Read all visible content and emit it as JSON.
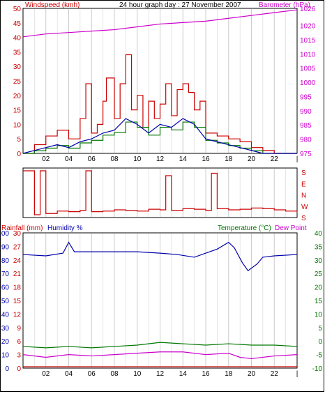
{
  "colors": {
    "wind": "#cc0000",
    "gust_green": "#007700",
    "wind_blue": "#0000aa",
    "barometer": "#cc00cc",
    "rain": "#cc0000",
    "humidity": "#0000aa",
    "temperature": "#007700",
    "dewpoint": "#cc00cc",
    "grid": "#cccccc"
  },
  "chart_data": [
    {
      "type": "line",
      "title": "24 hour graph day : 27 November 2007",
      "ylabel": "Windspeed (kmh)",
      "y2label": "Barometer (hPa)",
      "ylim": [
        0,
        50
      ],
      "y2lim": [
        975,
        1026
      ],
      "yticks": [
        0,
        5,
        10,
        15,
        20,
        25,
        30,
        35,
        40,
        45,
        50
      ],
      "y2ticks": [
        975,
        980,
        985,
        990,
        995,
        1000,
        1005,
        1010,
        1015,
        1020,
        1026
      ],
      "xticks": [
        "02",
        "04",
        "06",
        "08",
        "10",
        "12",
        "14",
        "16",
        "18",
        "20",
        "22",
        "|"
      ],
      "series": [
        {
          "name": "Barometer",
          "axis": "right",
          "x": [
            0,
            2,
            4,
            6,
            8,
            10,
            12,
            14,
            16,
            18,
            20,
            22,
            24
          ],
          "values": [
            1016,
            1017,
            1017.5,
            1018,
            1018.5,
            1019.5,
            1020.5,
            1021,
            1021.5,
            1022.5,
            1023.5,
            1024.5,
            1025.5
          ]
        },
        {
          "name": "Windspeed",
          "axis": "left",
          "x": [
            0,
            1,
            2,
            3,
            4,
            5,
            5.5,
            6,
            6.5,
            7,
            7.3,
            8,
            8.5,
            9,
            9.5,
            10,
            10.5,
            11,
            11.5,
            12,
            12.5,
            13,
            13.5,
            14,
            14.5,
            15,
            15.5,
            16,
            17,
            18,
            19,
            20,
            21,
            22,
            23,
            24
          ],
          "values": [
            0,
            3,
            6,
            8,
            5,
            12,
            24,
            7,
            10,
            18,
            26,
            12,
            24,
            34,
            15,
            20,
            9,
            18,
            12,
            17,
            24,
            13,
            22,
            24,
            21,
            15,
            18,
            7,
            6,
            5,
            4,
            2,
            1,
            0,
            0,
            0
          ]
        },
        {
          "name": "Wind average",
          "axis": "left",
          "x": [
            0,
            1,
            2,
            3,
            4,
            5,
            6,
            7,
            8,
            9,
            10,
            11,
            12,
            13,
            14,
            15,
            16,
            17,
            18,
            19,
            20,
            21,
            22,
            23,
            24
          ],
          "values": [
            0,
            1,
            2,
            3,
            2,
            4,
            5,
            7,
            8,
            12,
            10,
            7,
            10,
            9,
            12,
            10,
            5,
            4,
            3,
            2,
            1,
            0,
            0,
            0,
            0
          ]
        }
      ]
    },
    {
      "type": "line",
      "title": "",
      "ylabel": "",
      "yticks": [
        "S",
        "E",
        "N",
        "W",
        "S"
      ],
      "xticks": [],
      "series": [
        {
          "name": "Wind direction",
          "x": [
            0,
            0.5,
            1,
            1.5,
            2,
            3,
            4,
            5,
            5.5,
            6,
            7,
            8,
            9,
            10,
            11,
            12,
            12.5,
            13,
            14,
            15,
            16,
            16.5,
            17,
            18,
            19,
            20,
            21,
            22,
            23,
            24
          ],
          "values": [
            360,
            360,
            0,
            360,
            10,
            30,
            25,
            35,
            360,
            25,
            30,
            40,
            35,
            30,
            45,
            40,
            320,
            35,
            50,
            45,
            35,
            340,
            50,
            40,
            45,
            55,
            50,
            40,
            30,
            20
          ]
        }
      ]
    },
    {
      "type": "line",
      "title": "",
      "ylabel": "Rainfall (mm)",
      "y2label": "Humidity %",
      "y3label": "Temperature (°C)",
      "y4label": "Dew Point",
      "rain_ticks": [
        0,
        3,
        6,
        9,
        12,
        15,
        18,
        21,
        24,
        27,
        30
      ],
      "humidity_ticks": [
        0,
        10,
        20,
        30,
        40,
        50,
        60,
        70,
        80,
        90,
        100
      ],
      "temp_ticks": [
        -10,
        -5,
        0,
        5,
        10,
        15,
        20,
        25,
        30,
        35,
        40
      ],
      "xticks": [
        "02",
        "04",
        "06",
        "08",
        "10",
        "12",
        "14",
        "16",
        "18",
        "20",
        "22",
        "|"
      ],
      "series": [
        {
          "name": "Humidity %",
          "x": [
            0,
            2,
            3.5,
            4,
            4.5,
            6,
            8,
            10,
            12,
            13.5,
            15,
            17,
            18,
            18.5,
            19.2,
            19.7,
            20.5,
            21,
            22,
            24
          ],
          "values": [
            84,
            83,
            85,
            93,
            86,
            86,
            86,
            86,
            85,
            84,
            82,
            88,
            93,
            89,
            78,
            72,
            77,
            82,
            83,
            84
          ]
        },
        {
          "name": "Temperature (°C)",
          "x": [
            0,
            2,
            4,
            6,
            8,
            10,
            12,
            14,
            16,
            18,
            20,
            22,
            24
          ],
          "values": [
            -2,
            -2.5,
            -2,
            -2.5,
            -2,
            -1.5,
            -0.5,
            -1,
            -1.5,
            -1,
            -1.5,
            -1.5,
            -2
          ]
        },
        {
          "name": "Dew Point",
          "x": [
            0,
            2,
            4,
            6,
            8,
            10,
            12,
            14,
            16,
            18,
            19,
            20,
            22,
            24
          ],
          "values": [
            -5,
            -6,
            -5,
            -5.5,
            -5,
            -4.5,
            -4,
            -4,
            -5,
            -4.5,
            -6,
            -6.5,
            -5.5,
            -5
          ]
        },
        {
          "name": "Rainfall",
          "x": [
            0,
            24
          ],
          "values": [
            0,
            0
          ]
        }
      ]
    }
  ]
}
